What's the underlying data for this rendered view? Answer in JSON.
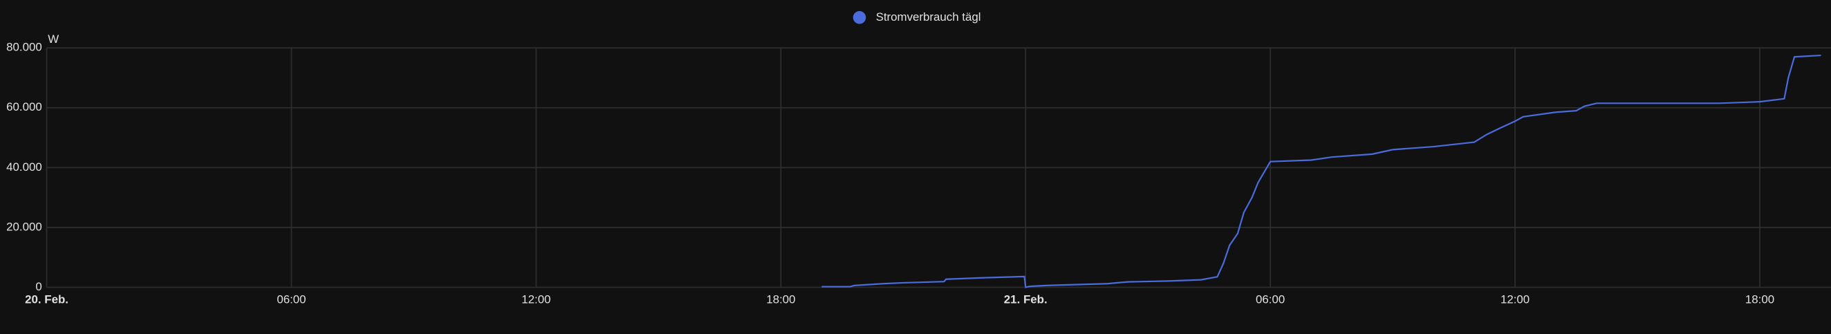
{
  "chart_data": {
    "type": "line",
    "y_label": "W",
    "series": [
      {
        "name": "Stromverbrauch tägl",
        "color": "#4a6cdc",
        "x": [
          19.0,
          19.7,
          19.8,
          20.5,
          21.0,
          22.0,
          22.05,
          23.0,
          23.97,
          24.0,
          24.1,
          24.5,
          26.0,
          26.5,
          27.5,
          28.3,
          28.7,
          28.85,
          29.0,
          29.2,
          29.35,
          29.55,
          29.7,
          30.0,
          31.0,
          31.5,
          32.5,
          33.0,
          34.0,
          35.0,
          35.3,
          35.6,
          36.0,
          36.2,
          37.0,
          37.5,
          37.7,
          38.0,
          41.0,
          42.0,
          42.6,
          42.7,
          42.85,
          43.5
        ],
        "values": [
          200,
          200,
          600,
          1200,
          1500,
          1900,
          2700,
          3200,
          3600,
          0,
          300,
          600,
          1200,
          1800,
          2100,
          2500,
          3500,
          8000,
          14000,
          18000,
          25000,
          30000,
          35000,
          42000,
          42500,
          43500,
          44500,
          46000,
          47000,
          48500,
          51000,
          53000,
          55500,
          57000,
          58500,
          59000,
          60500,
          61500,
          61500,
          62000,
          63000,
          70000,
          77000,
          77500
        ]
      }
    ],
    "xlim": [
      0,
      43.46
    ],
    "xticks": [
      {
        "value": 0,
        "label": "20. Feb."
      },
      {
        "value": 6,
        "label": "06:00"
      },
      {
        "value": 12,
        "label": "12:00"
      },
      {
        "value": 18,
        "label": "18:00"
      },
      {
        "value": 24,
        "label": "21. Feb."
      },
      {
        "value": 30,
        "label": "06:00"
      },
      {
        "value": 36,
        "label": "12:00"
      },
      {
        "value": 42,
        "label": "18:00"
      }
    ],
    "ylim": [
      0,
      80000
    ],
    "yticks": [
      0,
      {
        "value": 20000,
        "label": "20.000"
      },
      {
        "value": 40000,
        "label": "40.000"
      },
      {
        "value": 60000,
        "label": "60.000"
      },
      {
        "value": 80000,
        "label": "80.000"
      }
    ],
    "grid": true
  }
}
